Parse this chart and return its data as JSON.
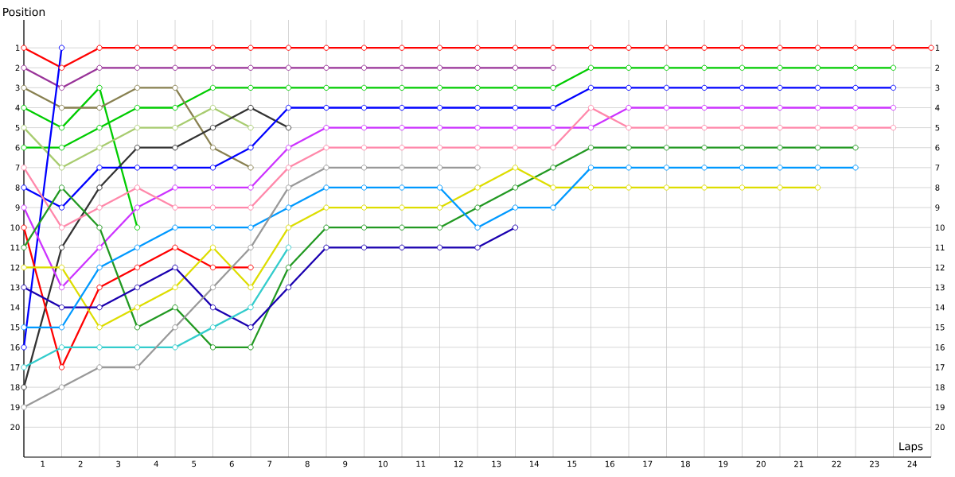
{
  "chart_data": {
    "type": "line",
    "xlabel": "Laps",
    "ylabel": "Position",
    "x": [
      0,
      1,
      2,
      3,
      4,
      5,
      6,
      7,
      8,
      9,
      10,
      11,
      12,
      13,
      14,
      15,
      16,
      17,
      18,
      19,
      20,
      21,
      22,
      23,
      24
    ],
    "xlim": [
      0,
      24
    ],
    "xticks": [
      {
        "value": 0,
        "label": null
      },
      {
        "value": 0.5,
        "label": "1"
      },
      {
        "value": 1,
        "label": null
      },
      {
        "value": 1.5,
        "label": "2"
      },
      {
        "value": 2,
        "label": null
      },
      {
        "value": 2.5,
        "label": "3"
      },
      {
        "value": 3,
        "label": null
      },
      {
        "value": 3.5,
        "label": "4"
      },
      {
        "value": 4,
        "label": null
      },
      {
        "value": 4.5,
        "label": "5"
      },
      {
        "value": 5,
        "label": null
      },
      {
        "value": 5.5,
        "label": "6"
      },
      {
        "value": 6,
        "label": null
      },
      {
        "value": 6.5,
        "label": "7"
      },
      {
        "value": 7,
        "label": null
      },
      {
        "value": 7.5,
        "label": "8"
      },
      {
        "value": 8,
        "label": null
      },
      {
        "value": 8.5,
        "label": "9"
      },
      {
        "value": 9,
        "label": null
      },
      {
        "value": 9.5,
        "label": "10"
      },
      {
        "value": 10,
        "label": null
      },
      {
        "value": 10.5,
        "label": "11"
      },
      {
        "value": 11,
        "label": null
      },
      {
        "value": 11.5,
        "label": "12"
      },
      {
        "value": 12,
        "label": null
      },
      {
        "value": 12.5,
        "label": "13"
      },
      {
        "value": 13,
        "label": null
      },
      {
        "value": 13.5,
        "label": "14"
      },
      {
        "value": 14,
        "label": null
      },
      {
        "value": 14.5,
        "label": "15"
      },
      {
        "value": 15,
        "label": null
      },
      {
        "value": 15.5,
        "label": "16"
      },
      {
        "value": 16,
        "label": null
      },
      {
        "value": 16.5,
        "label": "17"
      },
      {
        "value": 17,
        "label": null
      },
      {
        "value": 17.5,
        "label": "18"
      },
      {
        "value": 18,
        "label": null
      },
      {
        "value": 18.5,
        "label": "19"
      },
      {
        "value": 19,
        "label": null
      },
      {
        "value": 19.5,
        "label": "20"
      },
      {
        "value": 20,
        "label": null
      },
      {
        "value": 20.5,
        "label": "21"
      },
      {
        "value": 21,
        "label": null
      },
      {
        "value": 21.5,
        "label": "22"
      },
      {
        "value": 22,
        "label": null
      },
      {
        "value": 22.5,
        "label": "23"
      },
      {
        "value": 23,
        "label": null
      },
      {
        "value": 23.5,
        "label": "24"
      },
      {
        "value": 24,
        "label": null
      }
    ],
    "ylim": [
      21.5,
      -0.4
    ],
    "yticks": [
      1,
      2,
      3,
      4,
      5,
      6,
      7,
      8,
      9,
      10,
      11,
      12,
      13,
      14,
      15,
      16,
      17,
      18,
      19,
      20
    ],
    "y2lim": [
      21.5,
      -0.4
    ],
    "y2ticks": [
      1,
      2,
      3,
      4,
      5,
      6,
      7,
      8,
      9,
      10,
      11,
      12,
      13,
      14,
      15,
      16,
      17,
      18,
      19,
      20
    ],
    "grid": true,
    "marker": "circle",
    "line_style": "solid",
    "series": [
      {
        "color": "#ff0000",
        "values": [
          1,
          2,
          1,
          1,
          1,
          1,
          1,
          1,
          1,
          1,
          1,
          1,
          1,
          1,
          1,
          1,
          1,
          1,
          1,
          1,
          1,
          1,
          1,
          1,
          1
        ]
      },
      {
        "color": "#993399",
        "values": [
          2,
          3,
          2,
          2,
          2,
          2,
          2,
          2,
          2,
          2,
          2,
          2,
          2,
          2,
          2,
          null,
          null,
          null,
          null,
          null,
          null,
          null,
          null,
          null,
          null
        ]
      },
      {
        "color": "#00cc00",
        "values": [
          4,
          5,
          3,
          10,
          null,
          null,
          null,
          null,
          null,
          null,
          null,
          null,
          null,
          null,
          null,
          null,
          null,
          null,
          null,
          null,
          null,
          null,
          null,
          null,
          null
        ]
      },
      {
        "color": "#00cc00",
        "values": [
          6,
          6,
          5,
          4,
          4,
          3,
          3,
          3,
          3,
          3,
          3,
          3,
          3,
          3,
          3,
          2,
          2,
          2,
          2,
          2,
          2,
          2,
          2,
          2,
          null
        ]
      },
      {
        "color": "#888050",
        "values": [
          3,
          4,
          4,
          3,
          3,
          6,
          7,
          null,
          null,
          null,
          null,
          null,
          null,
          null,
          null,
          null,
          null,
          null,
          null,
          null,
          null,
          null,
          null,
          null,
          null
        ]
      },
      {
        "color": "#a8cc70",
        "values": [
          5,
          7,
          6,
          5,
          5,
          4,
          5,
          null,
          null,
          null,
          null,
          null,
          null,
          null,
          null,
          null,
          null,
          null,
          null,
          null,
          null,
          null,
          null,
          null,
          null
        ]
      },
      {
        "color": "#333333",
        "values": [
          18,
          11,
          8,
          6,
          6,
          5,
          4,
          5,
          null,
          null,
          null,
          null,
          null,
          null,
          null,
          null,
          null,
          null,
          null,
          null,
          null,
          null,
          null,
          null,
          null
        ]
      },
      {
        "color": "#0000ff",
        "values": [
          16,
          1,
          null,
          null,
          null,
          null,
          null,
          null,
          null,
          null,
          null,
          null,
          null,
          null,
          null,
          null,
          null,
          null,
          null,
          null,
          null,
          null,
          null,
          null,
          null
        ]
      },
      {
        "color": "#0000ff",
        "values": [
          8,
          9,
          7,
          7,
          7,
          7,
          6,
          4,
          4,
          4,
          4,
          4,
          4,
          4,
          4,
          3,
          3,
          3,
          3,
          3,
          3,
          3,
          3,
          3,
          null
        ]
      },
      {
        "color": "#cc33ff",
        "values": [
          9,
          13,
          11,
          9,
          8,
          8,
          8,
          6,
          5,
          5,
          5,
          5,
          5,
          5,
          5,
          5,
          4,
          4,
          4,
          4,
          4,
          4,
          4,
          4,
          null
        ]
      },
      {
        "color": "#ff88aa",
        "values": [
          7,
          10,
          9,
          8,
          9,
          9,
          9,
          7,
          6,
          6,
          6,
          6,
          6,
          6,
          6,
          4,
          5,
          5,
          5,
          5,
          5,
          5,
          5,
          5,
          null
        ]
      },
      {
        "color": "#ff0000",
        "values": [
          10,
          17,
          13,
          12,
          11,
          12,
          12,
          null,
          null,
          null,
          null,
          null,
          null,
          null,
          null,
          null,
          null,
          null,
          null,
          null,
          null,
          null,
          null,
          null,
          null
        ]
      },
      {
        "color": "#229922",
        "values": [
          11,
          8,
          10,
          15,
          14,
          16,
          16,
          12,
          10,
          10,
          10,
          10,
          9,
          8,
          7,
          6,
          6,
          6,
          6,
          6,
          6,
          6,
          6,
          null,
          null
        ]
      },
      {
        "color": "#dddd00",
        "values": [
          12,
          12,
          15,
          14,
          13,
          11,
          13,
          10,
          9,
          9,
          9,
          9,
          8,
          7,
          8,
          8,
          8,
          8,
          8,
          8,
          8,
          8,
          null,
          null,
          null
        ]
      },
      {
        "color": "#1a00b0",
        "values": [
          13,
          14,
          14,
          13,
          12,
          14,
          15,
          13,
          11,
          11,
          11,
          11,
          11,
          10,
          null,
          null,
          null,
          null,
          null,
          null,
          null,
          null,
          null,
          null,
          null
        ]
      },
      {
        "color": "#0099ff",
        "values": [
          15,
          15,
          12,
          11,
          10,
          10,
          10,
          9,
          8,
          8,
          8,
          8,
          10,
          9,
          9,
          7,
          7,
          7,
          7,
          7,
          7,
          7,
          7,
          null,
          null
        ]
      },
      {
        "color": "#33cccc",
        "values": [
          17,
          16,
          16,
          16,
          16,
          15,
          14,
          11,
          null,
          null,
          null,
          null,
          null,
          null,
          null,
          null,
          null,
          null,
          null,
          null,
          null,
          null,
          null,
          null,
          null
        ]
      },
      {
        "color": "#999999",
        "values": [
          19,
          18,
          17,
          17,
          15,
          13,
          11,
          8,
          7,
          7,
          7,
          7,
          7,
          null,
          null,
          null,
          null,
          null,
          null,
          null,
          null,
          null,
          null,
          null,
          null
        ]
      }
    ]
  }
}
